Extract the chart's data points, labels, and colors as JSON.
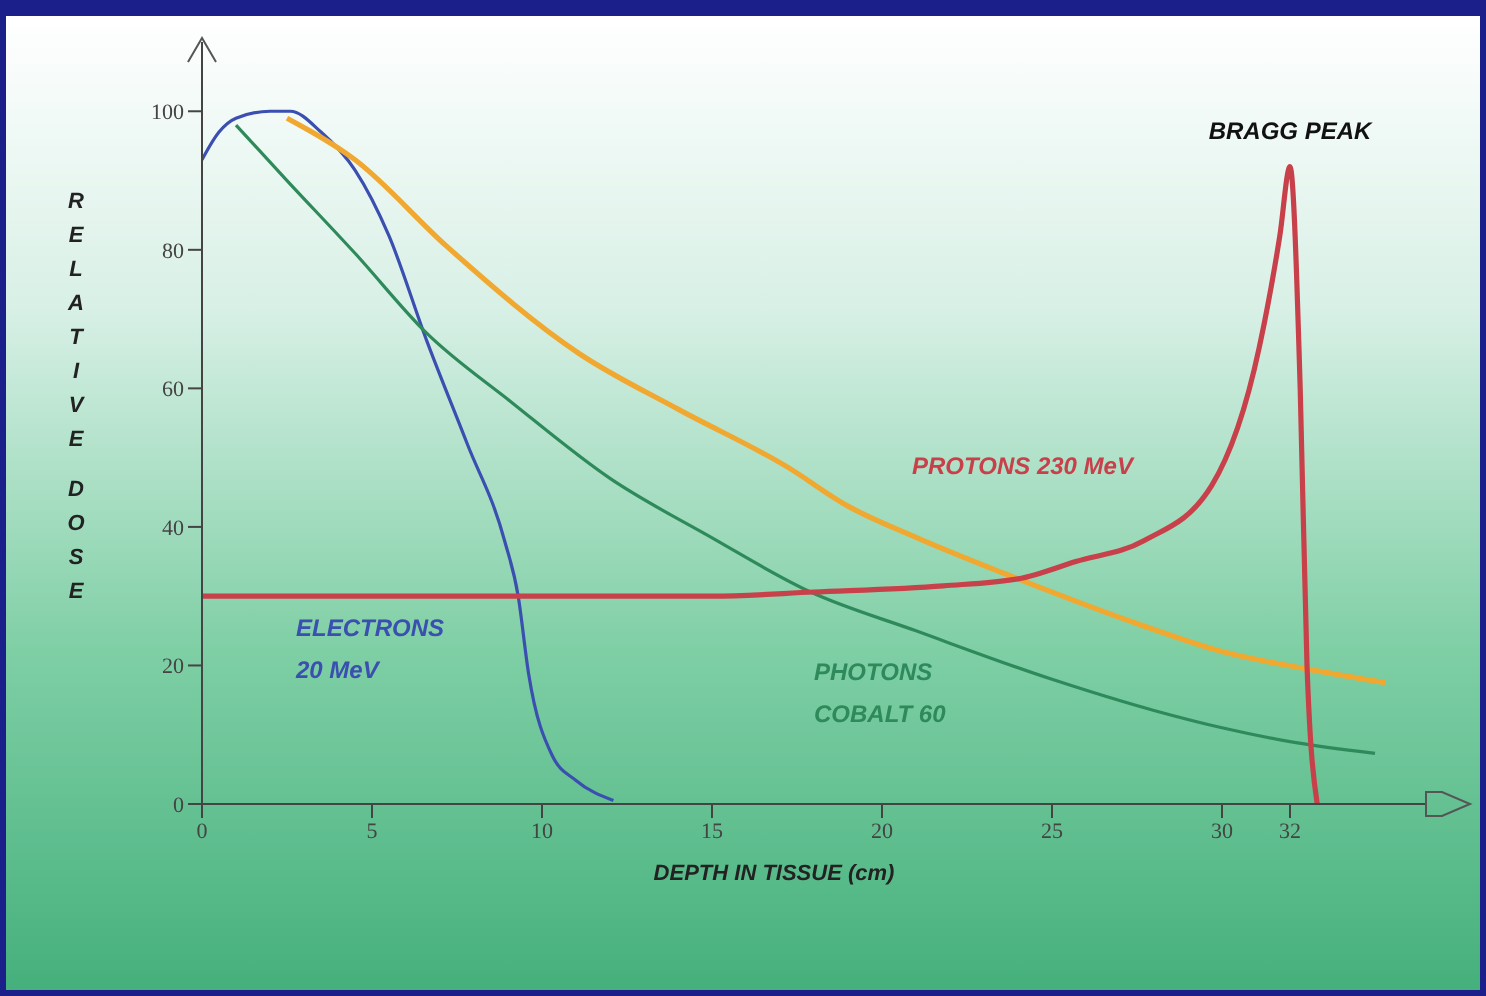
{
  "chart_data": {
    "type": "line",
    "xlabel": "DEPTH IN TISSUE (cm)",
    "ylabel": "RELATIVE DOSE",
    "xlim": [
      0,
      36
    ],
    "ylim": [
      0,
      110
    ],
    "xticks": [
      0,
      5,
      10,
      15,
      20,
      25,
      30,
      32
    ],
    "yticks": [
      0,
      20,
      40,
      60,
      80,
      100
    ],
    "marker": "none",
    "line_style": "solid",
    "annotations": [
      {
        "text": "BRAGG PEAK",
        "x": 32,
        "y": 92
      }
    ],
    "series": [
      {
        "name": "ELECTRONS\n20 MeV",
        "color": "#3a4fb0",
        "x": [
          0,
          0.5,
          1,
          2,
          2.6,
          3.5,
          4.5,
          5.5,
          6.6,
          7.8,
          8.9,
          9.3,
          9.6,
          10.3,
          11,
          12.1
        ],
        "values": [
          93,
          97,
          99,
          100,
          100,
          97,
          91.5,
          82,
          67,
          52,
          38,
          30,
          19,
          7,
          3.4,
          0.5
        ]
      },
      {
        "name": "PHOTONS\nCOBALT 60",
        "color": "#2e8a5a",
        "x": [
          1,
          2.5,
          4.5,
          6.6,
          9.1,
          12,
          14.9,
          17.9,
          21,
          25,
          28,
          30,
          32,
          34.5
        ],
        "values": [
          98,
          90,
          79.5,
          68,
          58,
          47,
          38.7,
          30.6,
          25,
          18,
          13.5,
          11,
          9,
          7.3
        ]
      },
      {
        "color": "#f0a830",
        "x": [
          2.5,
          4.5,
          7.2,
          11.1,
          14,
          17.2,
          19,
          21,
          24,
          27.7,
          30,
          32.6,
          34.8
        ],
        "values": [
          99,
          93,
          80.5,
          65,
          57,
          48.7,
          43,
          38.5,
          32.5,
          25.7,
          22,
          19.4,
          17.5
        ]
      },
      {
        "name": "PROTONS 230 MeV",
        "color": "#c8404a",
        "x": [
          0,
          15,
          18,
          21.8,
          24,
          25.7,
          27.7,
          29.7,
          31.1,
          31.7,
          32,
          32.3,
          32.5,
          32.8
        ],
        "values": [
          30,
          30,
          30.6,
          31.5,
          32.5,
          35,
          38,
          46,
          66,
          82,
          92,
          60,
          20,
          0
        ]
      }
    ]
  }
}
